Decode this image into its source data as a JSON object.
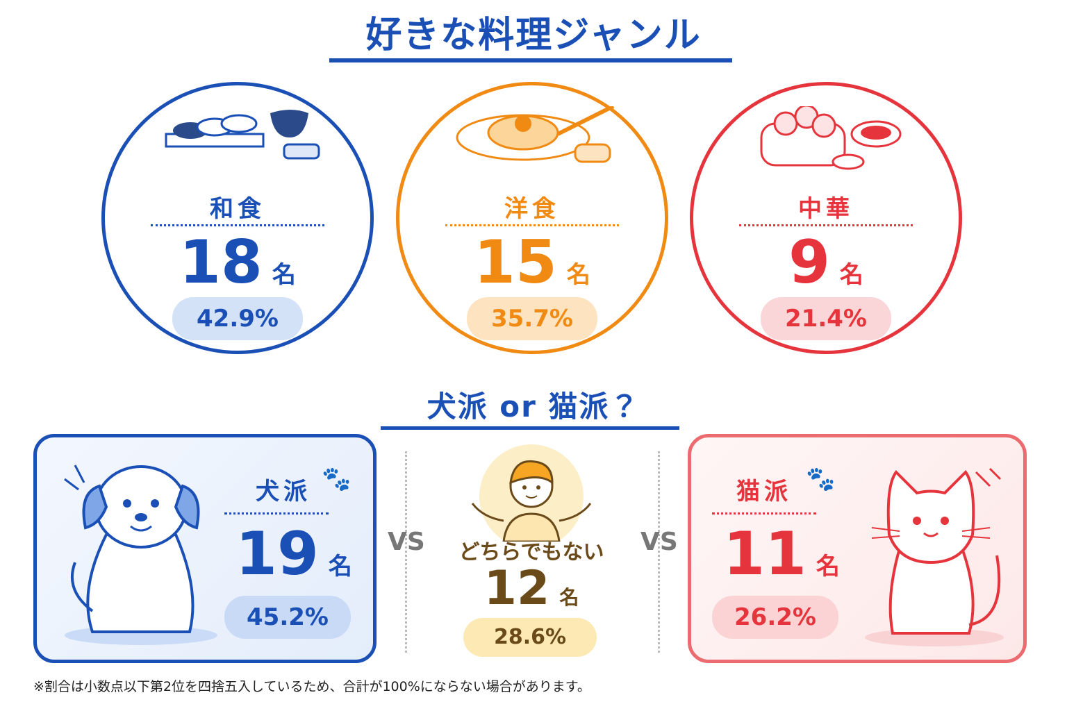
{
  "title": "好きな料理ジャンル",
  "food": {
    "items": [
      {
        "label": "和食",
        "count": "18",
        "unit": "名",
        "percent": "42.9%"
      },
      {
        "label": "洋食",
        "count": "15",
        "unit": "名",
        "percent": "35.7%"
      },
      {
        "label": "中華",
        "count": "9",
        "unit": "名",
        "percent": "21.4%"
      }
    ]
  },
  "pets": {
    "title": "犬派 or 猫派？",
    "dog": {
      "label": "犬派",
      "count": "19",
      "unit": "名",
      "percent": "45.2%"
    },
    "neither": {
      "label": "どちらでもない",
      "count": "12",
      "unit": "名",
      "percent": "28.6%"
    },
    "cat": {
      "label": "猫派",
      "count": "11",
      "unit": "名",
      "percent": "26.2%"
    },
    "vs": [
      "VS",
      "VS"
    ]
  },
  "footnote": "※割合は小数点以下第2位を四捨五入しているため、合計が100%にならない場合があります。"
}
